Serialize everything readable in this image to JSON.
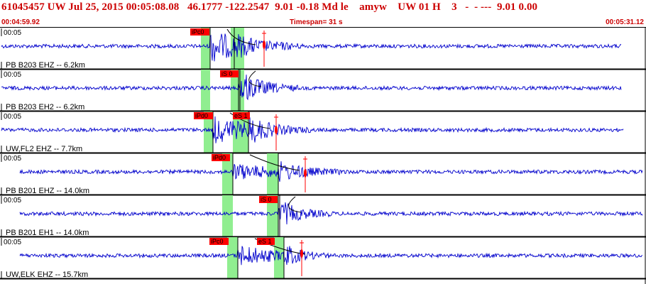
{
  "header": {
    "event_line": "61045457 UW Jul 25, 2015 00:05:08.08   46.1777 -122.2547  9.01 -0.18 Md le    amyw    UW 01 H    3   -  - ---  9.01 0.00",
    "start_time": "00:04:59.92",
    "timespan": "Timespan=  31 s",
    "end_time": "00:05:31.12"
  },
  "colors": {
    "header_text": "#cc0000",
    "trace": "#0000cc",
    "pick_box": "#ff0000",
    "pick_window": "#90ee90",
    "separator": "#000000"
  },
  "panels": [
    {
      "time_label": "00:05",
      "channel_label": "PB B203 EHZ -- 6.2km",
      "picks": [
        {
          "label": "iPc0"
        }
      ]
    },
    {
      "time_label": "00:05",
      "channel_label": "PB B203 EH2 -- 6.2km",
      "picks": [
        {
          "label": "iS 0"
        }
      ]
    },
    {
      "time_label": "00:05",
      "channel_label": "UW,FL2 EHZ -- 7.7km",
      "picks": [
        {
          "label": "iPd0"
        },
        {
          "label": "eS 1"
        }
      ]
    },
    {
      "time_label": "00:05",
      "channel_label": "PB B201 EHZ -- 14.0km",
      "picks": [
        {
          "label": "iPd0"
        }
      ]
    },
    {
      "time_label": "00:05",
      "channel_label": "PB B201 EH1 -- 14.0km",
      "picks": [
        {
          "label": "iS 0"
        }
      ]
    },
    {
      "time_label": "00:05",
      "channel_label": "UW,ELK EHZ -- 15.7km",
      "picks": [
        {
          "label": "iPc0"
        },
        {
          "label": "eS 1"
        }
      ]
    }
  ]
}
